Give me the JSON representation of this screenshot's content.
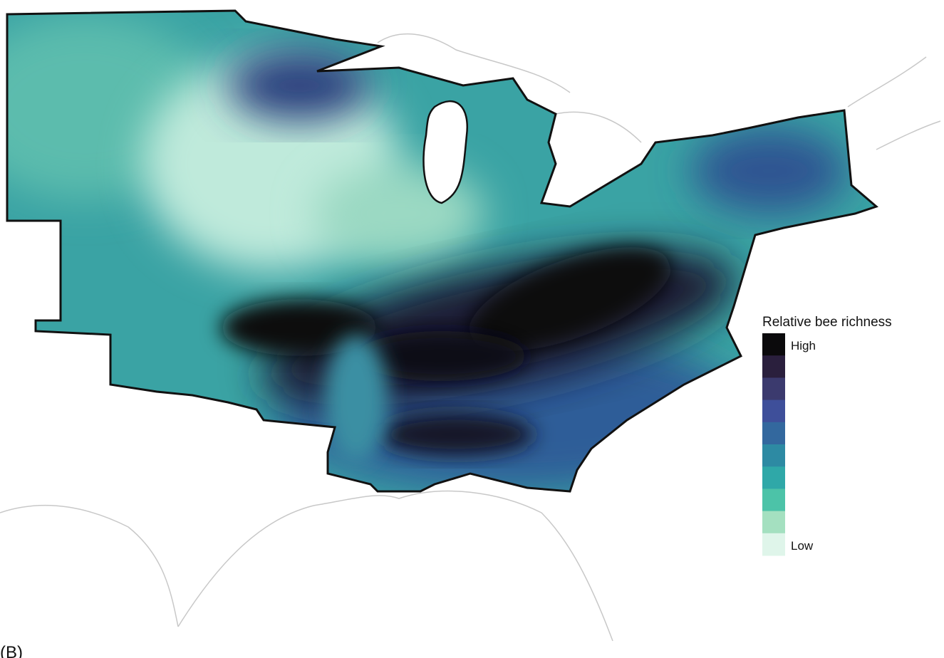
{
  "panel_label": "(B)",
  "legend": {
    "title": "Relative bee richness",
    "high_label": "High",
    "low_label": "Low",
    "colors": [
      "#0b0a0c",
      "#2a1f3d",
      "#3b3a6e",
      "#3e4f9a",
      "#33689e",
      "#2d8aa3",
      "#2fa8a8",
      "#4cc3a8",
      "#a4e0c0",
      "#dff5ea"
    ]
  }
}
